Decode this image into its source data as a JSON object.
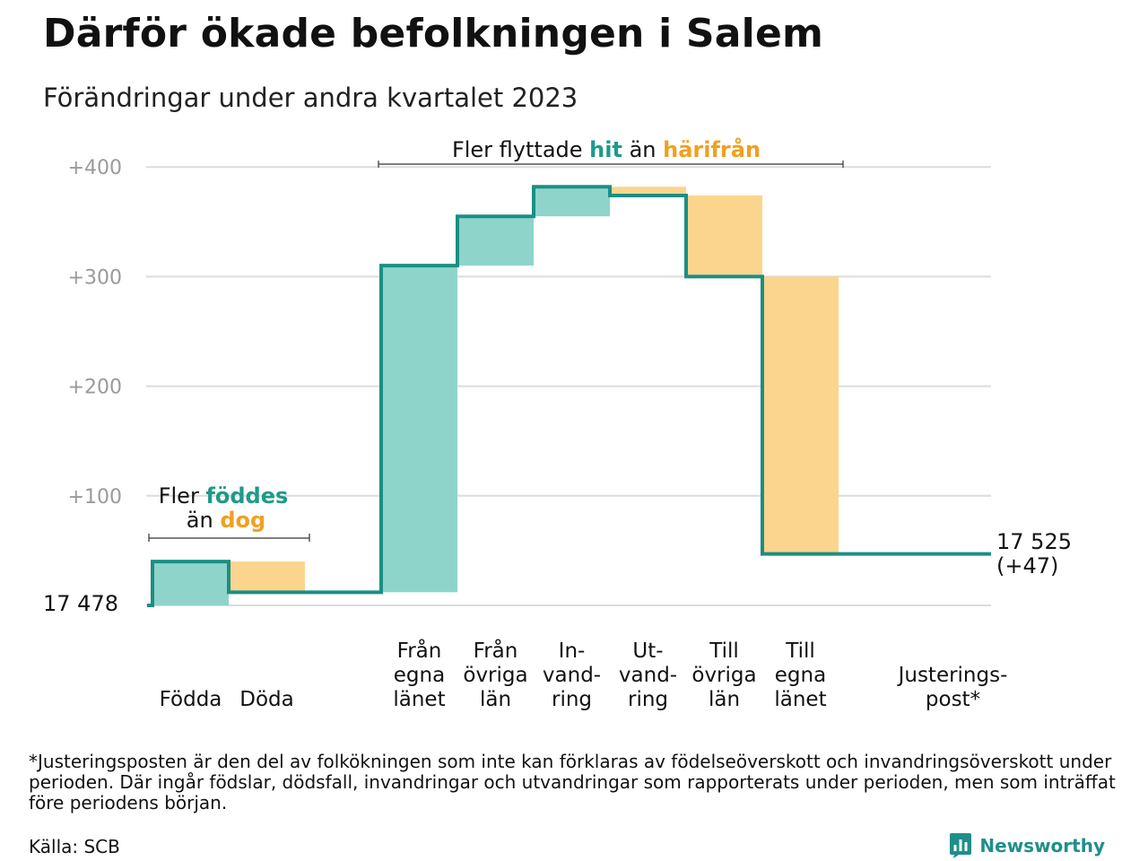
{
  "title": "Därför ökade befolkningen i Salem",
  "subtitle": "Förändringar under andra kvartalet 2023",
  "chart_data": {
    "type": "waterfall",
    "baseline": 0,
    "start_label": "17  478",
    "end_label_lines": [
      "17 525",
      "(+47)"
    ],
    "ylim": [
      0,
      400
    ],
    "yticks": [
      100,
      200,
      300,
      400
    ],
    "ytick_labels": [
      "+100",
      "+200",
      "+300",
      "+400"
    ],
    "grid": true,
    "steps": [
      {
        "label_lines": [
          "Födda"
        ],
        "from": 0,
        "to": 40
      },
      {
        "label_lines": [
          "Döda"
        ],
        "from": 40,
        "to": 12
      },
      {
        "label_lines": [],
        "from": 12,
        "to": 12
      },
      {
        "label_lines": [
          "Från",
          "egna",
          "länet"
        ],
        "from": 12,
        "to": 310
      },
      {
        "label_lines": [
          "Från",
          "övriga",
          "län"
        ],
        "from": 310,
        "to": 355
      },
      {
        "label_lines": [
          "In-",
          "vand-",
          "ring"
        ],
        "from": 355,
        "to": 382
      },
      {
        "label_lines": [
          "Ut-",
          "vand-",
          "ring"
        ],
        "from": 382,
        "to": 374
      },
      {
        "label_lines": [
          "Till",
          "övriga",
          "län"
        ],
        "from": 374,
        "to": 300
      },
      {
        "label_lines": [
          "Till",
          "egna",
          "länet"
        ],
        "from": 300,
        "to": 47
      },
      {
        "label_lines": [],
        "from": 47,
        "to": 47
      },
      {
        "label_lines": [
          "Justerings-",
          "post*"
        ],
        "from": 47,
        "to": 47
      }
    ],
    "annotations": [
      {
        "parts": [
          {
            "text": "Fler ",
            "color": "#111111"
          },
          {
            "text": "föddes",
            "color": "#1f9a8a",
            "bold": true
          }
        ],
        "line2": [
          {
            "text": "än ",
            "color": "#111111"
          },
          {
            "text": "dog",
            "color": "#f0a020",
            "bold": true
          }
        ]
      },
      {
        "parts": [
          {
            "text": "Fler flyttade ",
            "color": "#111111"
          },
          {
            "text": "hit",
            "color": "#1f9a8a",
            "bold": true
          },
          {
            "text": " än ",
            "color": "#111111"
          },
          {
            "text": "härifrån",
            "color": "#f0a020",
            "bold": true
          }
        ]
      }
    ],
    "colors": {
      "increase": "#8ed4cb",
      "decrease": "#fbd58e",
      "line": "#1a8f83",
      "grid": "#dcdcdc",
      "tick_text": "#9a9a9a"
    }
  },
  "footnote": "*Justeringsposten är den del av folkökningen som inte kan förklaras av födelseöverskott och invandringsöverskott under perioden. Där ingår födslar, dödsfall, invandringar och utvandringar som rapporterats under perioden, men som inträffat före periodens början.",
  "source": "Källa: SCB",
  "brand": {
    "name": "Newsworthy",
    "icon": "bar-chart-logo-icon",
    "color": "#1f8f8a"
  }
}
